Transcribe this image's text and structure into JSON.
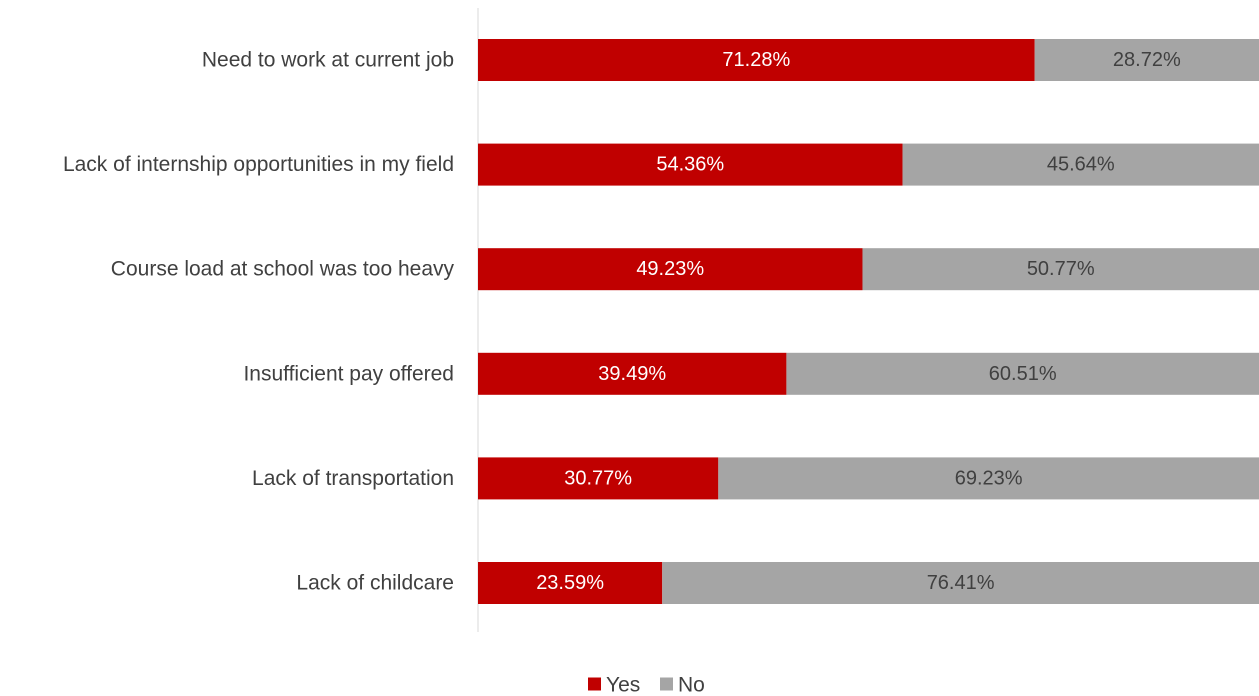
{
  "chart_data": {
    "type": "bar",
    "orientation": "horizontal",
    "stacked": true,
    "title": "",
    "xlabel": "",
    "ylabel": "",
    "categories": [
      "Need to work at current job",
      "Lack of internship opportunities in my field",
      "Course load at school was too heavy",
      "Insufficient pay offered",
      "Lack of transportation",
      "Lack of childcare"
    ],
    "series": [
      {
        "name": "Yes",
        "color": "#c00000",
        "label_color": "#ffffff",
        "values": [
          71.28,
          54.36,
          49.23,
          39.49,
          30.77,
          23.59
        ]
      },
      {
        "name": "No",
        "color": "#a5a5a5",
        "label_color": "#404040",
        "values": [
          28.72,
          45.64,
          50.77,
          60.51,
          69.23,
          76.41
        ]
      }
    ],
    "value_suffix": "%",
    "xlim": [
      0,
      100
    ],
    "grid": false,
    "legend_position": "bottom"
  }
}
